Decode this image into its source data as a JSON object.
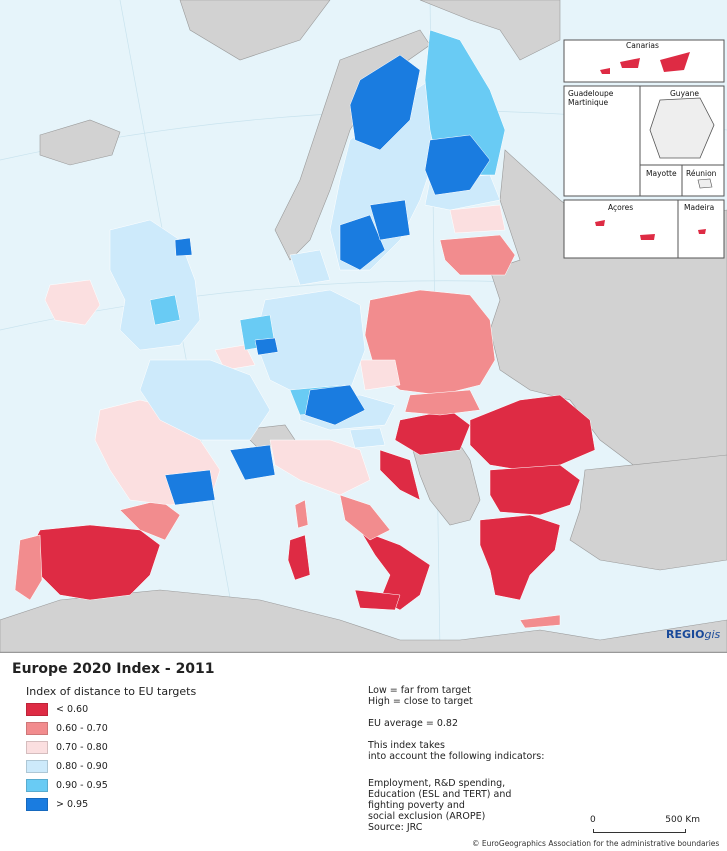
{
  "title": "Europe 2020 Index - 2011",
  "legend_title": "Index of distance to EU targets",
  "legend": [
    {
      "label": "< 0.60",
      "color": "#de2b44"
    },
    {
      "label": "0.60 - 0.70",
      "color": "#f28c8e"
    },
    {
      "label": "0.70 - 0.80",
      "color": "#fbdfe0"
    },
    {
      "label": "0.80 - 0.90",
      "color": "#cdeafb"
    },
    {
      "label": "0.90 - 0.95",
      "color": "#69cbf4"
    },
    {
      "label": "> 0.95",
      "color": "#1a7ce0"
    }
  ],
  "notes": {
    "low": "Low = far from target",
    "high": "High = close to target",
    "eu_average": "EU average = 0.82",
    "index_line1": "This index takes",
    "index_line2": "into account the following indicators:",
    "ind1": "Employment, R&D spending,",
    "ind2": "Education (ESL and TERT) and",
    "ind3": "fighting poverty and",
    "ind4": "social exclusion (AROPE)",
    "source": "Source: JRC"
  },
  "insets": {
    "canarias": "Canarias",
    "guadeloupe": "Guadeloupe",
    "martinique": "Martinique",
    "guyane": "Guyane",
    "mayotte": "Mayotte",
    "reunion": "Réunion",
    "acores": "Açores",
    "madeira": "Madeira"
  },
  "scale": {
    "zero": "0",
    "max": "500 Km"
  },
  "brand": {
    "regio": "REGIO",
    "gis": "gis"
  },
  "copyright": "© EuroGeographics Association for the administrative boundaries",
  "colors": {
    "sea": "#e6f4fa",
    "non_eu": "#d2d2d2",
    "no_data": "#bdbdbd"
  }
}
